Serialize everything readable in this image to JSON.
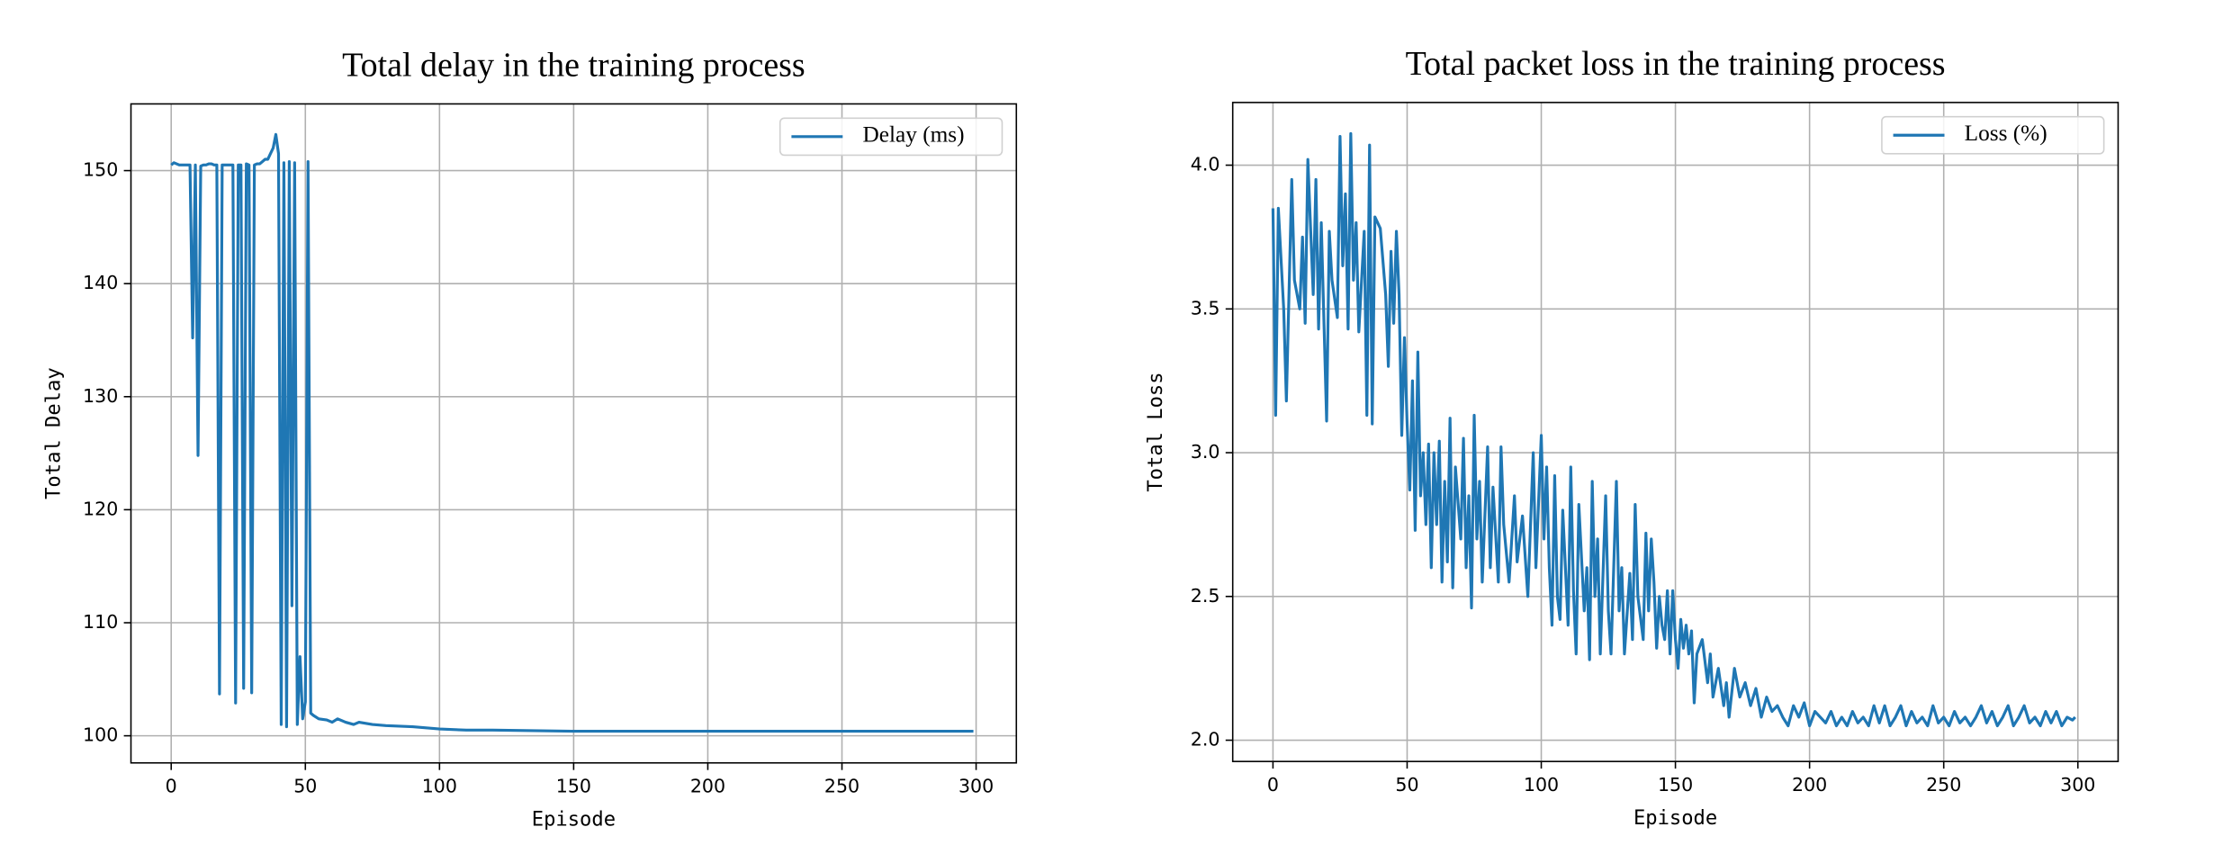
{
  "chart_data": [
    {
      "type": "line",
      "title": "Total delay in the training process",
      "xlabel": "Episode",
      "ylabel": "Total Delay",
      "x": [
        0,
        1,
        2,
        3,
        4,
        5,
        6,
        7,
        8,
        9,
        10,
        11,
        12,
        13,
        14,
        15,
        16,
        17,
        18,
        19,
        20,
        21,
        22,
        23,
        24,
        25,
        26,
        27,
        28,
        29,
        30,
        31,
        32,
        33,
        34,
        35,
        36,
        37,
        38,
        39,
        40,
        41,
        42,
        43,
        44,
        45,
        46,
        47,
        48,
        49,
        50,
        51,
        52,
        53,
        55,
        58,
        60,
        62,
        65,
        68,
        70,
        75,
        80,
        90,
        100,
        110,
        120,
        150,
        200,
        250,
        299
      ],
      "series": [
        {
          "name": "Delay (ms)",
          "color": "#1f77b4",
          "values": [
            150.5,
            150.7,
            150.6,
            150.5,
            150.5,
            150.5,
            150.5,
            150.5,
            135.2,
            150.5,
            124.8,
            150.4,
            150.5,
            150.5,
            150.6,
            150.6,
            150.5,
            150.5,
            103.7,
            150.5,
            150.5,
            150.5,
            150.5,
            150.5,
            102.9,
            150.5,
            150.5,
            104.2,
            150.6,
            150.5,
            103.8,
            150.5,
            150.6,
            150.6,
            150.8,
            151,
            151,
            151.5,
            152,
            153.2,
            151.5,
            101,
            150.7,
            100.8,
            150.8,
            111.5,
            150.7,
            101,
            107,
            101.5,
            103,
            150.8,
            102,
            101.8,
            101.5,
            101.4,
            101.2,
            101.5,
            101.2,
            101.0,
            101.2,
            101.0,
            100.9,
            100.8,
            100.6,
            100.5,
            100.5,
            100.4,
            100.4,
            100.4,
            100.4
          ]
        }
      ],
      "xlim": [
        -15,
        315
      ],
      "ylim": [
        97.6,
        155.9
      ],
      "xticks": [
        0,
        50,
        100,
        150,
        200,
        250,
        300
      ],
      "yticks": [
        100,
        110,
        120,
        130,
        140,
        150
      ],
      "grid": true,
      "legend": "upper right"
    },
    {
      "type": "line",
      "title": "Total packet loss in the training process",
      "xlabel": "Episode",
      "ylabel": "Total Loss",
      "x": [
        0,
        1,
        2,
        4,
        5,
        7,
        8,
        10,
        11,
        12,
        13,
        15,
        16,
        17,
        18,
        20,
        21,
        22,
        24,
        25,
        26,
        27,
        28,
        29,
        30,
        31,
        32,
        34,
        35,
        36,
        37,
        38,
        40,
        42,
        43,
        44,
        45,
        46,
        47,
        48,
        49,
        50,
        51,
        52,
        53,
        54,
        55,
        56,
        57,
        58,
        59,
        60,
        61,
        62,
        63,
        64,
        65,
        66,
        67,
        68,
        70,
        71,
        72,
        73,
        74,
        75,
        76,
        77,
        78,
        80,
        81,
        82,
        84,
        85,
        86,
        88,
        90,
        91,
        93,
        95,
        97,
        98,
        100,
        101,
        102,
        103,
        104,
        105,
        106,
        107,
        108,
        110,
        111,
        112,
        113,
        114,
        116,
        117,
        118,
        119,
        120,
        121,
        122,
        124,
        125,
        126,
        128,
        129,
        130,
        131,
        133,
        134,
        135,
        136,
        138,
        139,
        140,
        141,
        142,
        143,
        144,
        145,
        146,
        147,
        148,
        149,
        150,
        151,
        152,
        153,
        154,
        155,
        156,
        157,
        158,
        160,
        162,
        163,
        164,
        166,
        168,
        169,
        170,
        172,
        174,
        176,
        178,
        180,
        182,
        184,
        186,
        188,
        190,
        192,
        194,
        196,
        198,
        200,
        202,
        204,
        206,
        208,
        210,
        212,
        214,
        216,
        218,
        220,
        222,
        224,
        226,
        228,
        230,
        232,
        234,
        236,
        238,
        240,
        242,
        244,
        246,
        248,
        250,
        252,
        254,
        256,
        258,
        260,
        262,
        264,
        266,
        268,
        270,
        272,
        274,
        276,
        278,
        280,
        282,
        284,
        286,
        288,
        290,
        292,
        294,
        296,
        298,
        299
      ],
      "series": [
        {
          "name": "Loss (%)",
          "color": "#1f77b4",
          "values": [
            3.85,
            3.13,
            3.85,
            3.5,
            3.18,
            3.95,
            3.6,
            3.5,
            3.75,
            3.45,
            4.02,
            3.55,
            3.95,
            3.43,
            3.8,
            3.11,
            3.77,
            3.6,
            3.47,
            4.1,
            3.65,
            3.9,
            3.43,
            4.11,
            3.6,
            3.8,
            3.42,
            3.77,
            3.13,
            4.07,
            3.1,
            3.82,
            3.78,
            3.55,
            3.3,
            3.7,
            3.45,
            3.77,
            3.55,
            3.06,
            3.4,
            3.1,
            2.87,
            3.25,
            2.73,
            3.35,
            2.85,
            3.0,
            2.75,
            3.03,
            2.6,
            3.0,
            2.75,
            3.04,
            2.55,
            2.9,
            2.62,
            3.12,
            2.53,
            2.95,
            2.7,
            3.05,
            2.6,
            2.85,
            2.46,
            3.13,
            2.7,
            2.9,
            2.55,
            3.02,
            2.6,
            2.88,
            2.55,
            3.02,
            2.75,
            2.55,
            2.85,
            2.62,
            2.78,
            2.5,
            3.0,
            2.6,
            3.06,
            2.7,
            2.95,
            2.6,
            2.4,
            2.92,
            2.5,
            2.42,
            2.8,
            2.4,
            2.95,
            2.52,
            2.3,
            2.82,
            2.45,
            2.6,
            2.28,
            2.9,
            2.5,
            2.7,
            2.3,
            2.85,
            2.45,
            2.3,
            2.9,
            2.45,
            2.6,
            2.3,
            2.58,
            2.35,
            2.82,
            2.5,
            2.35,
            2.72,
            2.45,
            2.7,
            2.55,
            2.32,
            2.5,
            2.4,
            2.35,
            2.52,
            2.3,
            2.52,
            2.35,
            2.25,
            2.42,
            2.32,
            2.4,
            2.3,
            2.38,
            2.13,
            2.3,
            2.35,
            2.2,
            2.3,
            2.15,
            2.25,
            2.12,
            2.2,
            2.08,
            2.25,
            2.15,
            2.2,
            2.12,
            2.18,
            2.08,
            2.15,
            2.1,
            2.12,
            2.08,
            2.05,
            2.12,
            2.08,
            2.13,
            2.05,
            2.1,
            2.08,
            2.06,
            2.1,
            2.05,
            2.08,
            2.05,
            2.1,
            2.06,
            2.08,
            2.05,
            2.12,
            2.06,
            2.12,
            2.05,
            2.08,
            2.12,
            2.05,
            2.1,
            2.06,
            2.08,
            2.05,
            2.12,
            2.06,
            2.08,
            2.05,
            2.1,
            2.06,
            2.08,
            2.05,
            2.08,
            2.12,
            2.06,
            2.1,
            2.05,
            2.08,
            2.12,
            2.05,
            2.08,
            2.12,
            2.06,
            2.08,
            2.05,
            2.1,
            2.06,
            2.1,
            2.05,
            2.08,
            2.07,
            2.08
          ]
        }
      ],
      "xlim": [
        -15,
        315
      ],
      "ylim": [
        1.926,
        4.218
      ],
      "xticks": [
        0,
        50,
        100,
        150,
        200,
        250,
        300
      ],
      "yticks": [
        {
          "value": 2,
          "label": "2.0"
        },
        2.5,
        {
          "value": 3,
          "label": "3.0"
        },
        3.5,
        {
          "value": 4,
          "label": "4.0"
        }
      ],
      "grid": true,
      "legend": "upper right"
    }
  ]
}
